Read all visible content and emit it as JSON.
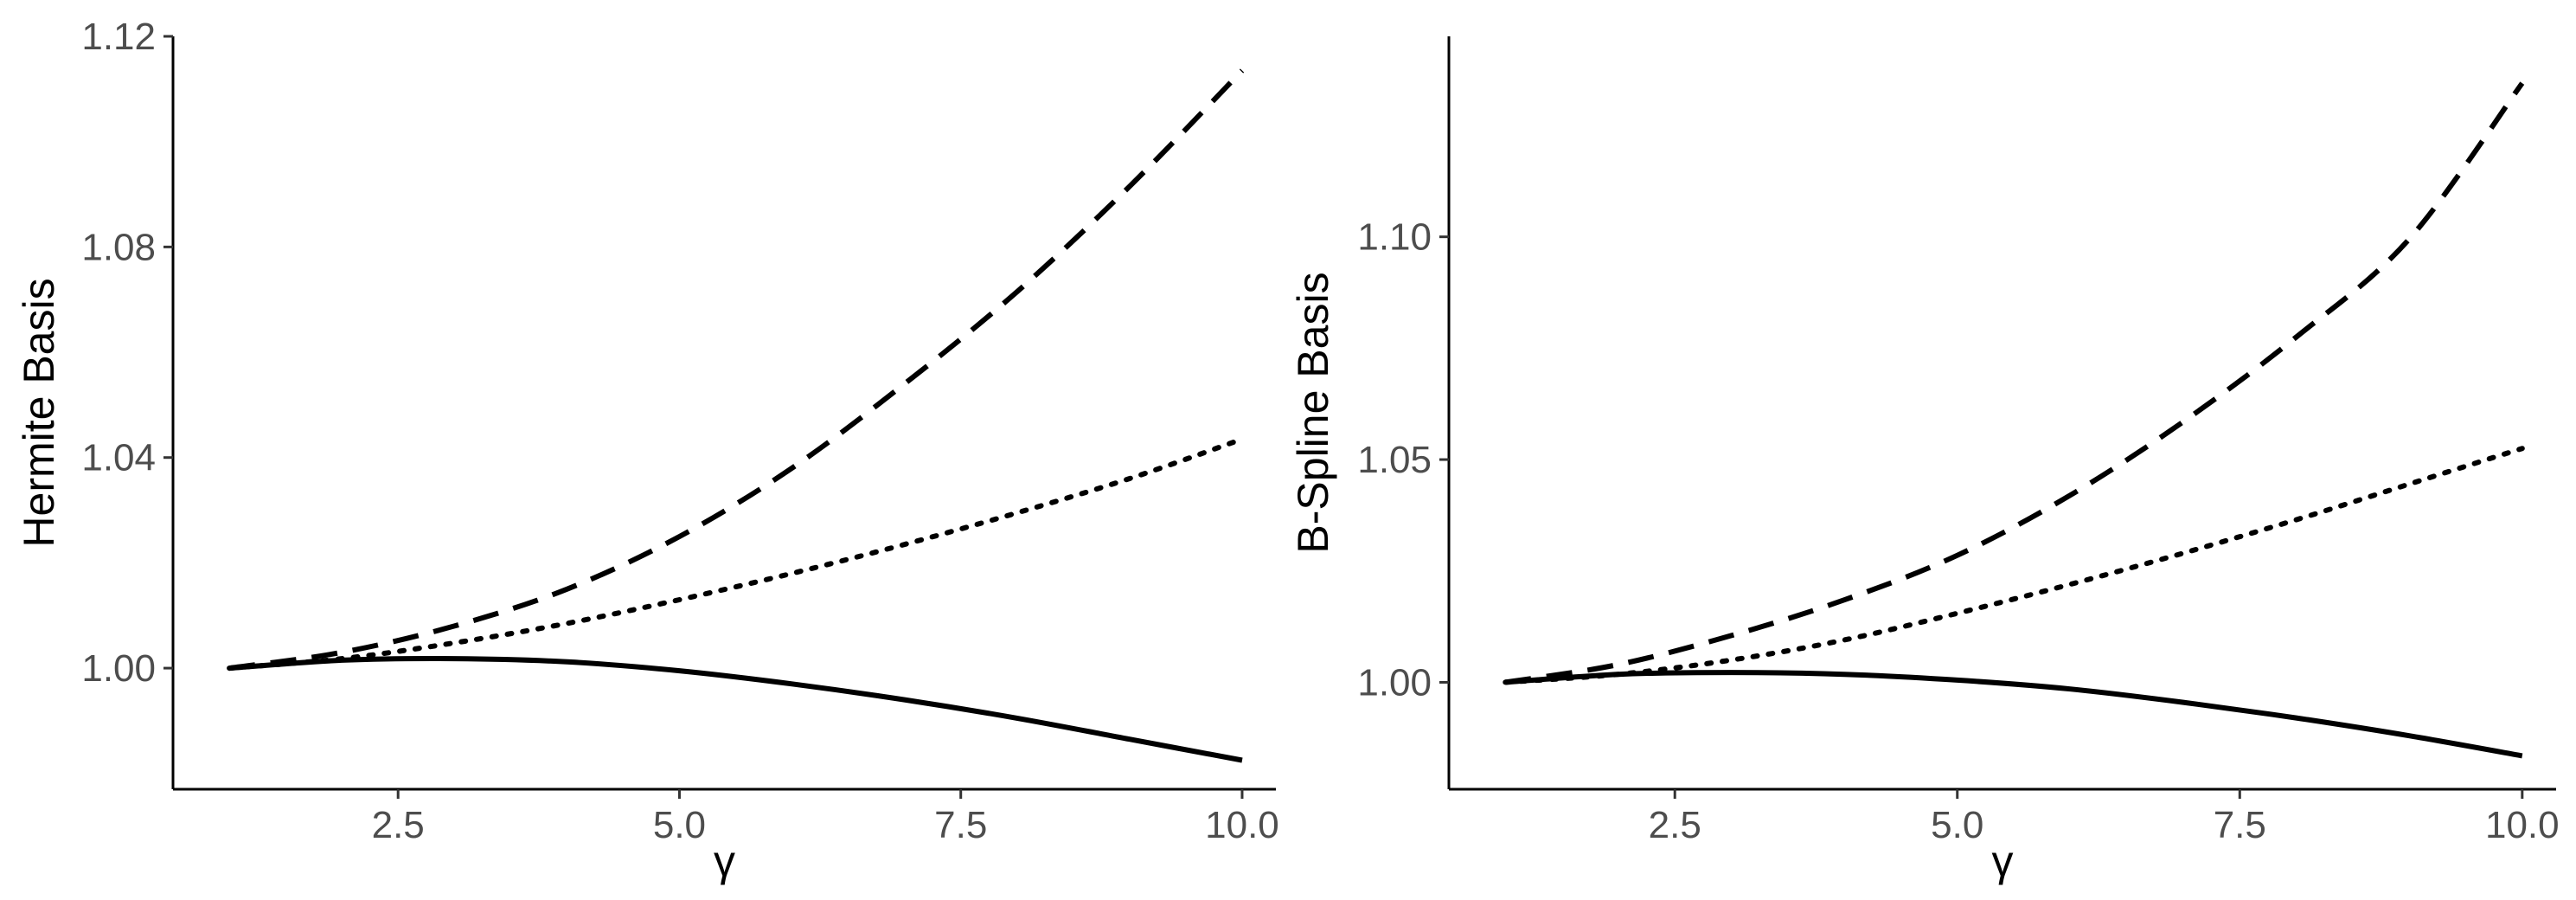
{
  "chart_data": [
    {
      "type": "line",
      "title": "",
      "xlabel": "γ",
      "ylabel": "Hermite Basis",
      "xlim": [
        0.5,
        10.3
      ],
      "ylim": [
        0.977,
        1.12
      ],
      "x_ticks": [
        2.5,
        5.0,
        7.5,
        10.0
      ],
      "x_tick_labels": [
        "2.5",
        "5.0",
        "7.5",
        "10.0"
      ],
      "y_ticks": [
        1.0,
        1.04,
        1.08,
        1.12
      ],
      "y_tick_labels": [
        "1.00",
        "1.04",
        "1.08",
        "1.12"
      ],
      "grid": false,
      "legend": "none",
      "x": [
        1,
        2,
        3,
        4,
        5,
        6,
        7,
        8,
        9,
        10
      ],
      "series": [
        {
          "style": "solid",
          "values": [
            1.0,
            1.0015,
            1.0018,
            1.0012,
            0.9995,
            0.997,
            0.994,
            0.9905,
            0.9865,
            0.9825
          ]
        },
        {
          "style": "dashed",
          "values": [
            1.0,
            1.003,
            1.008,
            1.015,
            1.025,
            1.038,
            1.054,
            1.0715,
            1.0915,
            1.1135
          ]
        },
        {
          "style": "dotted",
          "values": [
            1.0,
            1.0018,
            1.0048,
            1.0085,
            1.013,
            1.018,
            1.0235,
            1.0295,
            1.036,
            1.0435
          ]
        }
      ]
    },
    {
      "type": "line",
      "title": "",
      "xlabel": "γ",
      "ylabel": "B-Spline Basis",
      "xlim": [
        0.5,
        10.3
      ],
      "ylim": [
        0.976,
        1.145
      ],
      "x_ticks": [
        2.5,
        5.0,
        7.5,
        10.0
      ],
      "x_tick_labels": [
        "2.5",
        "5.0",
        "7.5",
        "10.0"
      ],
      "y_ticks": [
        1.0,
        1.05,
        1.1
      ],
      "y_tick_labels": [
        "1.00",
        "1.05",
        "1.10"
      ],
      "grid": false,
      "legend": "none",
      "x": [
        1,
        2,
        3,
        4,
        5,
        6,
        7,
        8,
        9,
        10
      ],
      "series": [
        {
          "style": "solid",
          "values": [
            1.0,
            1.0018,
            1.0022,
            1.0018,
            1.0005,
            0.9985,
            0.9955,
            0.992,
            0.988,
            0.9835
          ]
        },
        {
          "style": "dashed",
          "values": [
            1.0,
            1.004,
            1.0105,
            1.0185,
            1.0285,
            1.042,
            1.0585,
            1.0775,
            1.0995,
            1.1345
          ]
        },
        {
          "style": "dotted",
          "values": [
            1.0,
            1.0018,
            1.005,
            1.0095,
            1.0155,
            1.022,
            1.029,
            1.0365,
            1.0445,
            1.0525
          ]
        }
      ]
    }
  ]
}
